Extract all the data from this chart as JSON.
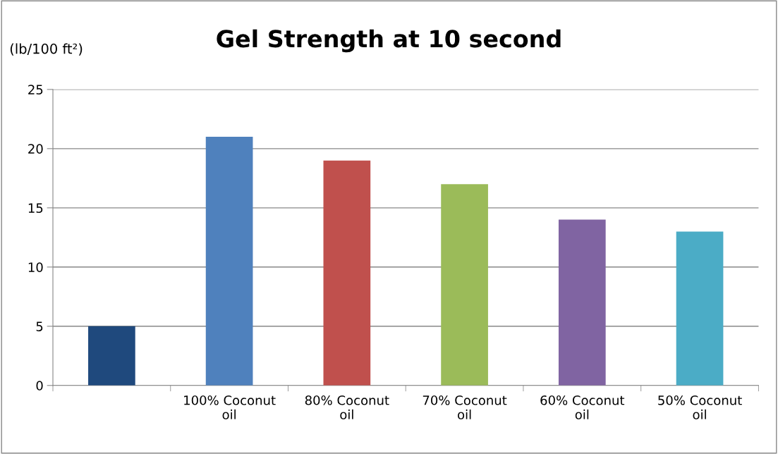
{
  "chart_data": {
    "type": "bar",
    "title": "Gel Strength at 10 second",
    "ylabel": "(lb/100 ft²)",
    "categories": [
      null,
      "100% Coconut oil",
      "80% Coconut oil",
      "70% Coconut oil",
      "60% Coconut oil",
      "50% Coconut oil"
    ],
    "values": [
      5,
      21,
      19,
      17,
      14,
      13
    ],
    "colors": [
      "#1f497d",
      "#4f81bd",
      "#c0504d",
      "#9bbb59",
      "#8064a2",
      "#4bacc6"
    ],
    "ylim": [
      0,
      25
    ],
    "yticks": [
      0,
      5,
      10,
      15,
      20,
      25
    ],
    "grid": "y"
  }
}
